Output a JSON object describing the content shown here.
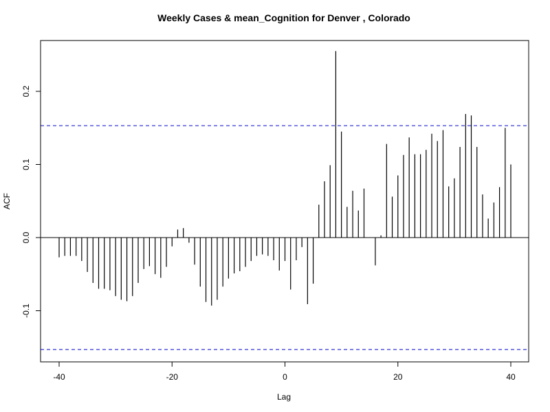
{
  "chart_data": {
    "type": "bar",
    "title": "Weekly Cases & mean_Cognition for Denver , Colorado",
    "xlabel": "Lag",
    "ylabel": "ACF",
    "xlim": [
      -40,
      40
    ],
    "ylim": [
      -0.16,
      0.27
    ],
    "x_ticks": [
      -40,
      -20,
      0,
      20,
      40
    ],
    "x_tick_labels": [
      "-40",
      "-20",
      "0",
      "20",
      "40"
    ],
    "y_ticks": [
      -0.1,
      0.0,
      0.1,
      0.2
    ],
    "y_tick_labels": [
      "-0.1",
      "0.0",
      "0.1",
      "0.2"
    ],
    "confidence_bounds": [
      0.153,
      -0.153
    ],
    "bound_color": "#0000cc",
    "bar_color": "#000000",
    "lags": [
      -40,
      -39,
      -38,
      -37,
      -36,
      -35,
      -34,
      -33,
      -32,
      -31,
      -30,
      -29,
      -28,
      -27,
      -26,
      -25,
      -24,
      -23,
      -22,
      -21,
      -20,
      -19,
      -18,
      -17,
      -16,
      -15,
      -14,
      -13,
      -12,
      -11,
      -10,
      -9,
      -8,
      -7,
      -6,
      -5,
      -4,
      -3,
      -2,
      -1,
      0,
      1,
      2,
      3,
      4,
      5,
      6,
      7,
      8,
      9,
      10,
      11,
      12,
      13,
      14,
      15,
      16,
      17,
      18,
      19,
      20,
      21,
      22,
      23,
      24,
      25,
      26,
      27,
      28,
      29,
      30,
      31,
      32,
      33,
      34,
      35,
      36,
      37,
      38,
      39,
      40
    ],
    "acf": [
      -0.027,
      -0.025,
      -0.025,
      -0.025,
      -0.032,
      -0.047,
      -0.062,
      -0.07,
      -0.07,
      -0.072,
      -0.08,
      -0.085,
      -0.087,
      -0.08,
      -0.062,
      -0.043,
      -0.039,
      -0.05,
      -0.055,
      -0.04,
      -0.012,
      0.011,
      0.013,
      -0.007,
      -0.037,
      -0.067,
      -0.088,
      -0.093,
      -0.085,
      -0.067,
      -0.056,
      -0.049,
      -0.046,
      -0.04,
      -0.032,
      -0.025,
      -0.023,
      -0.025,
      -0.031,
      -0.045,
      -0.032,
      -0.071,
      -0.031,
      -0.013,
      -0.091,
      -0.063,
      0.045,
      0.077,
      0.099,
      0.255,
      0.145,
      0.042,
      0.064,
      0.037,
      0.067,
      0.0,
      -0.038,
      0.003,
      0.128,
      0.056,
      0.085,
      0.113,
      0.137,
      0.114,
      0.114,
      0.12,
      0.142,
      0.132,
      0.147,
      0.07,
      0.081,
      0.124,
      0.169,
      0.167,
      0.124,
      0.059,
      0.026,
      0.048,
      0.069,
      0.15,
      0.1
    ]
  }
}
